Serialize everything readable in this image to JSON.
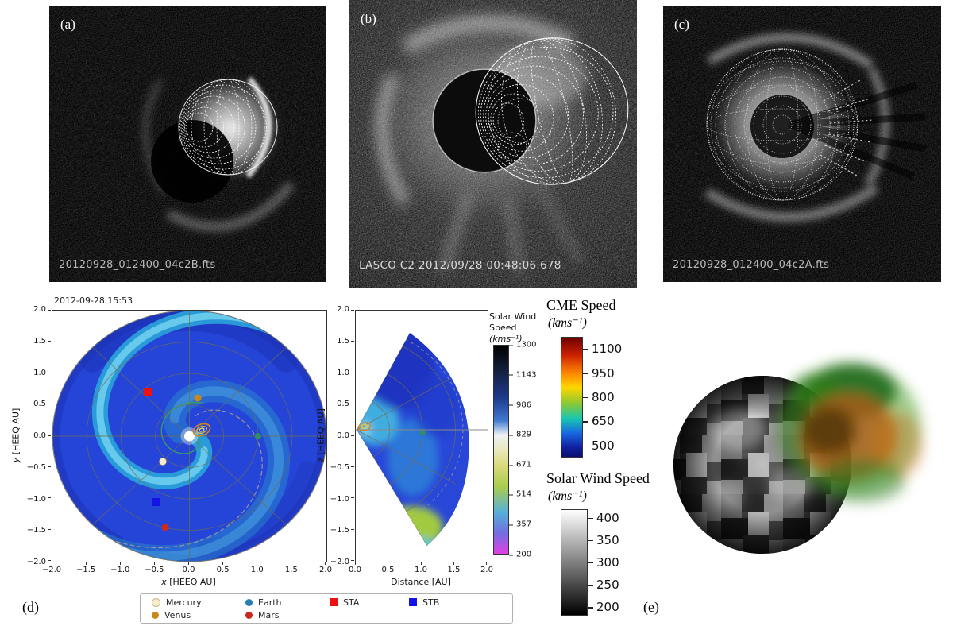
{
  "figure": {
    "panel_a": {
      "label": "(a)",
      "caption": "20120928_012400_04c2B.fts"
    },
    "panel_b": {
      "label": "(b)",
      "caption": "LASCO C2 2012/09/28 00:48:06.678"
    },
    "panel_c": {
      "label": "(c)",
      "caption": "20120928_012400_04c2A.fts"
    },
    "panel_d": {
      "label": "(d)",
      "timestamp": "2012-09-28 15:53"
    },
    "panel_e": {
      "label": "(e)"
    }
  },
  "plot_xy": {
    "xlabel_var": "x",
    "xlabel_rest": " [HEEQ AU]",
    "ylabel_var": "y",
    "ylabel_rest": " [HEEQ AU]",
    "xticks": [
      "−2.0",
      "−1.5",
      "−1.0",
      "−0.5",
      "0.0",
      "0.5",
      "1.0",
      "1.5",
      "2.0"
    ],
    "yticks": [
      "2.0",
      "1.5",
      "1.0",
      "0.5",
      "0.0",
      "−0.5",
      "−1.0",
      "−1.5",
      "−2.0"
    ]
  },
  "plot_xz": {
    "xlabel": "Distance [AU]",
    "ylabel_var": "z",
    "ylabel_rest": " [HEEQ AU]",
    "xticks": [
      "0.0",
      "0.5",
      "1.0",
      "1.5",
      "2.0"
    ],
    "yticks": [
      "2.0",
      "1.5",
      "1.0",
      "0.5",
      "0.0",
      "−0.5",
      "−1.0",
      "−1.5",
      "−2.0"
    ]
  },
  "colorbar_wind_map": {
    "title_line1": "Solar Wind",
    "title_line2": "Speed",
    "title_line3": "(kms⁻¹)",
    "ticks": [
      "1300",
      "1143",
      "986",
      "829",
      "671",
      "514",
      "357",
      "200"
    ]
  },
  "colorbar_cme": {
    "title": "CME Speed",
    "unit": "(kms⁻¹)",
    "ticks": [
      "1100",
      "950",
      "800",
      "650",
      "500"
    ]
  },
  "colorbar_wind_3d": {
    "title": "Solar Wind Speed",
    "unit": "(kms⁻¹)",
    "ticks": [
      "400",
      "350",
      "300",
      "250",
      "200"
    ]
  },
  "legend": {
    "items": [
      {
        "label": "Mercury",
        "marker": "circle",
        "color": "#f5edcb"
      },
      {
        "label": "Venus",
        "marker": "circle",
        "color": "#c8871b"
      },
      {
        "label": "Earth",
        "marker": "circle",
        "color": "#2380b0"
      },
      {
        "label": "Mars",
        "marker": "circle",
        "color": "#c8281e"
      },
      {
        "label": "STA",
        "marker": "square",
        "color": "#ee1111"
      },
      {
        "label": "STB",
        "marker": "square",
        "color": "#1313e8"
      }
    ]
  },
  "colors": {
    "background": "#ffffff",
    "wind_disk_blue": "#2545d8",
    "spiral_cyan": "#2ba4da",
    "contour_orange": "#d7831c",
    "contour_yellow": "#e8c840",
    "cme_3d_green": "#3f9e22",
    "cme_3d_orange": "#b05a14"
  },
  "chart_data": [
    {
      "type": "heatmap",
      "name": "ecliptic_solar_wind_map",
      "time": "2012-09-28 15:53",
      "xlabel": "x [HEEQ AU]",
      "ylabel": "y [HEEQ AU]",
      "xlim": [
        -2,
        2
      ],
      "ylim": [
        -2,
        2
      ],
      "grid": "polar, rings every 0.5 AU, spokes every 45 deg",
      "colorbar": {
        "label": "Solar Wind Speed (kms⁻¹)",
        "ticks": [
          1300,
          1143,
          986,
          829,
          671,
          514,
          357,
          200
        ]
      },
      "markers": [
        {
          "name": "Sun",
          "x": 0,
          "y": 0
        },
        {
          "name": "Mercury",
          "x": -0.39,
          "y": -0.41
        },
        {
          "name": "Venus",
          "x": 0.12,
          "y": 0.61
        },
        {
          "name": "Earth",
          "x": 1.0,
          "y": 0.0
        },
        {
          "name": "Mars",
          "x": -0.35,
          "y": -1.46
        },
        {
          "name": "STA",
          "x": -0.61,
          "y": 0.71
        },
        {
          "name": "STB",
          "x": -0.49,
          "y": -1.05
        },
        {
          "name": "CME ensemble contour",
          "x": 0.15,
          "y": 0.1
        }
      ]
    },
    {
      "type": "heatmap",
      "name": "meridional_solar_wind_map",
      "xlabel": "Distance [AU]",
      "ylabel": "z [HEEQ AU]",
      "xlim": [
        0,
        2
      ],
      "ylim": [
        -2,
        2
      ],
      "shape": "wedge fan with apex at Sun near z=0.1",
      "markers": [
        {
          "name": "CME ensemble contour",
          "x": 0.12,
          "z": 0.1
        },
        {
          "name": "Earth",
          "x": 1.0,
          "z": 0.05
        }
      ]
    },
    {
      "type": "3d_render",
      "name": "cme_flux_rope_and_solar_wind_sphere",
      "cme_speed_scale": {
        "label": "CME Speed (kms⁻¹)",
        "ticks": [
          1100,
          950,
          800,
          650,
          500
        ]
      },
      "solar_wind_scale": {
        "label": "Solar Wind Speed (kms⁻¹)",
        "ticks": [
          400,
          350,
          300,
          250,
          200
        ]
      }
    }
  ]
}
